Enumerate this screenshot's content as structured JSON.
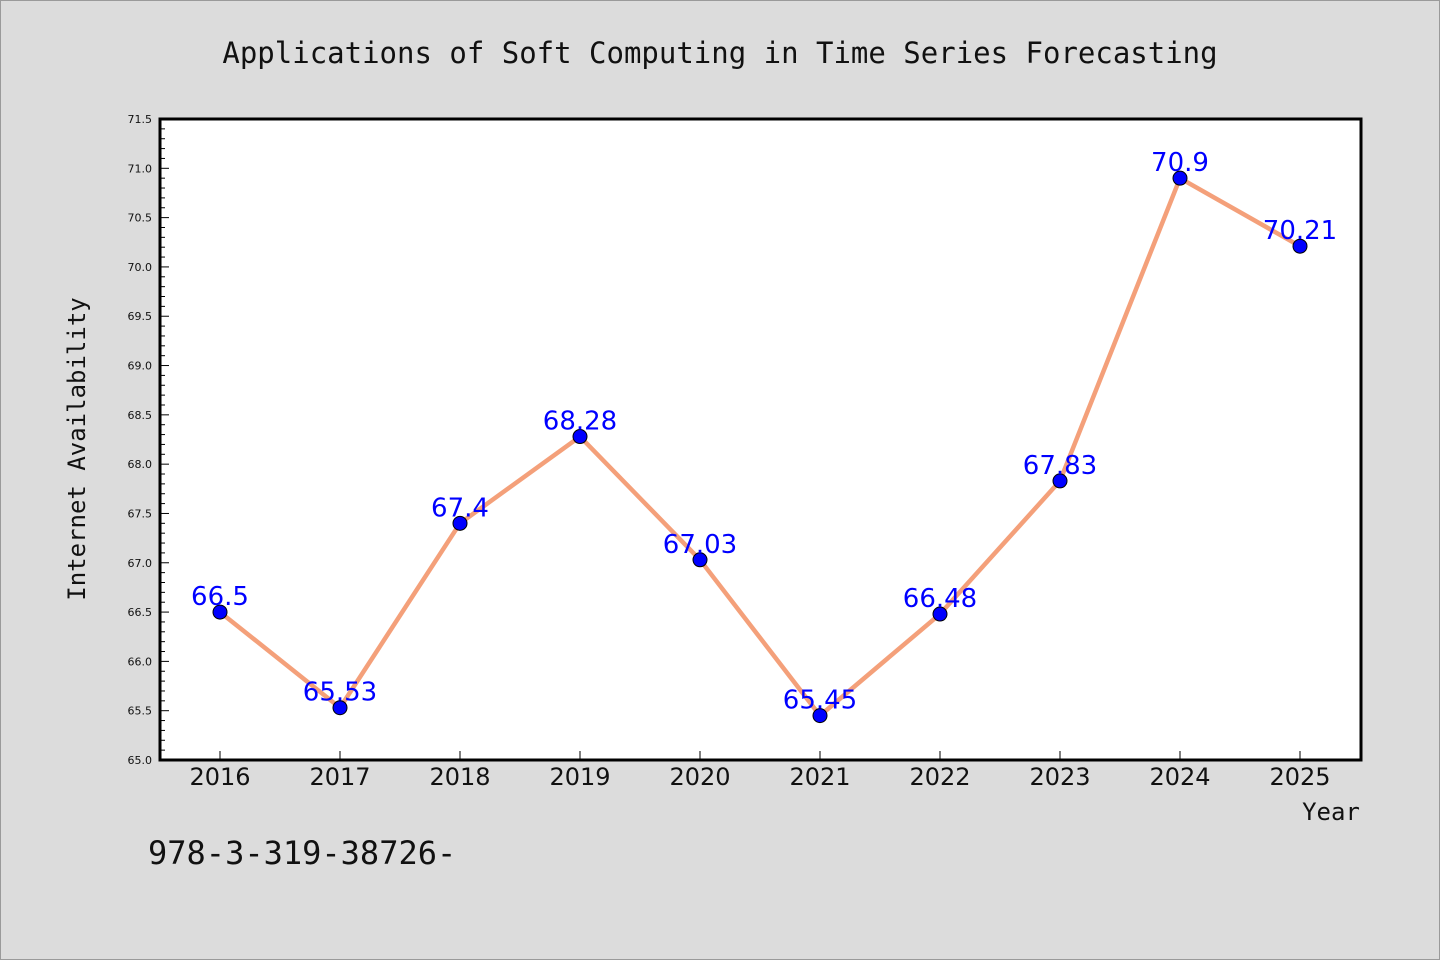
{
  "chart_data": {
    "type": "line",
    "title": "Applications of Soft Computing in Time Series Forecasting",
    "xlabel": "Year",
    "ylabel": "Internet Availability",
    "categories": [
      "2016",
      "2017",
      "2018",
      "2019",
      "2020",
      "2021",
      "2022",
      "2023",
      "2024",
      "2025"
    ],
    "series": [
      {
        "values": [
          66.5,
          65.53,
          67.4,
          68.28,
          67.03,
          65.45,
          66.48,
          67.83,
          70.9,
          70.21
        ],
        "labels": [
          "66.5",
          "65.53",
          "67.4",
          "68.28",
          "67.03",
          "65.45",
          "66.48",
          "67.83",
          "70.9",
          "70.21"
        ],
        "line_color": "#f4a07a",
        "marker_color": "#0000ff"
      }
    ],
    "ylim": [
      65.0,
      71.5
    ],
    "yticks": [
      "65.0",
      "65.5",
      "66.0",
      "66.5",
      "67.0",
      "67.5",
      "68.0",
      "68.5",
      "69.0",
      "69.5",
      "70.0",
      "70.5",
      "71.0",
      "71.5"
    ],
    "grid": false,
    "legend": "none"
  },
  "footer_text": "978-3-319-38726-"
}
